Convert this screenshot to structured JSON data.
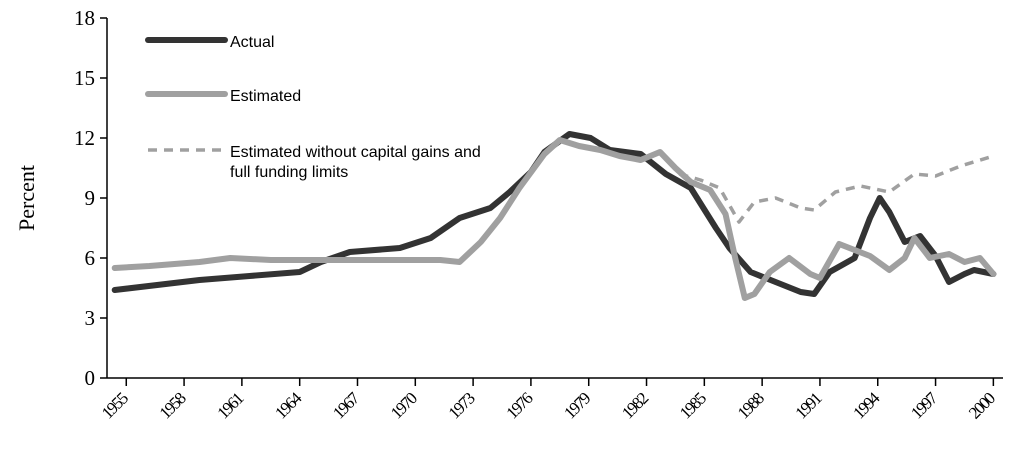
{
  "chart_data": {
    "type": "line",
    "y_label": "Percent",
    "xlim": [
      1954,
      2000.5
    ],
    "ylim": [
      0,
      18
    ],
    "xticks": [
      1955,
      1958,
      1961,
      1964,
      1967,
      1970,
      1973,
      1976,
      1979,
      1982,
      1985,
      1988,
      1991,
      1994,
      1997,
      2000
    ],
    "yticks": [
      0,
      3,
      6,
      9,
      12,
      15,
      18
    ],
    "series": [
      {
        "name": "Actual",
        "color": "#333333",
        "style": "solid",
        "x": [
          1954.4,
          1958.8,
          1961.4,
          1964.0,
          1965.1,
          1966.6,
          1969.2,
          1970.8,
          1972.3,
          1973.9,
          1974.9,
          1976.0,
          1976.7,
          1978.0,
          1979.1,
          1980.1,
          1981.7,
          1983.0,
          1984.3,
          1985.6,
          1986.3,
          1987.4,
          1988.7,
          1990.0,
          1990.7,
          1991.5,
          1992.8,
          1993.6,
          1994.1,
          1994.6,
          1995.4,
          1996.2,
          1997.0,
          1997.7,
          1998.5,
          1999.0,
          2000.0
        ],
        "values": [
          4.4,
          4.9,
          5.1,
          5.3,
          5.8,
          6.3,
          6.5,
          7.0,
          8.0,
          8.5,
          9.3,
          10.3,
          11.3,
          12.2,
          12.0,
          11.4,
          11.2,
          10.2,
          9.5,
          7.5,
          6.5,
          5.3,
          4.8,
          4.3,
          4.2,
          5.3,
          6.0,
          8.0,
          9.0,
          8.3,
          6.8,
          7.1,
          6.1,
          4.8,
          5.2,
          5.4,
          5.2
        ]
      },
      {
        "name": "Estimated",
        "color": "#a0a0a0",
        "style": "solid",
        "x": [
          1954.4,
          1956.2,
          1958.8,
          1960.4,
          1962.5,
          1965.1,
          1969.2,
          1971.3,
          1972.3,
          1973.4,
          1974.4,
          1975.4,
          1976.7,
          1977.5,
          1978.5,
          1979.6,
          1980.6,
          1981.7,
          1982.7,
          1983.5,
          1984.3,
          1985.3,
          1986.1,
          1986.6,
          1987.1,
          1987.6,
          1988.4,
          1989.4,
          1990.5,
          1991.0,
          1992.0,
          1992.8,
          1993.6,
          1994.6,
          1995.4,
          1995.9,
          1996.7,
          1997.7,
          1998.5,
          1999.3,
          2000.0
        ],
        "values": [
          5.5,
          5.6,
          5.8,
          6.0,
          5.9,
          5.9,
          5.9,
          5.9,
          5.8,
          6.8,
          8.0,
          9.5,
          11.2,
          11.9,
          11.6,
          11.4,
          11.1,
          10.9,
          11.3,
          10.5,
          9.8,
          9.4,
          8.2,
          6.0,
          4.0,
          4.2,
          5.3,
          6.0,
          5.2,
          5.0,
          6.7,
          6.4,
          6.1,
          5.4,
          6.0,
          7.0,
          6.0,
          6.2,
          5.8,
          6.0,
          5.2
        ]
      },
      {
        "name": "Estimated without capital gains and full funding limits",
        "color": "#a0a0a0",
        "style": "dashed",
        "x": [
          1983.7,
          1984.8,
          1985.8,
          1986.8,
          1987.6,
          1988.7,
          1990.0,
          1990.7,
          1991.8,
          1993.1,
          1994.6,
          1995.9,
          1997.0,
          1998.3,
          2000.0
        ],
        "values": [
          10.2,
          9.9,
          9.5,
          7.8,
          8.8,
          9.0,
          8.5,
          8.4,
          9.3,
          9.6,
          9.3,
          10.2,
          10.1,
          10.6,
          11.1
        ]
      }
    ]
  }
}
